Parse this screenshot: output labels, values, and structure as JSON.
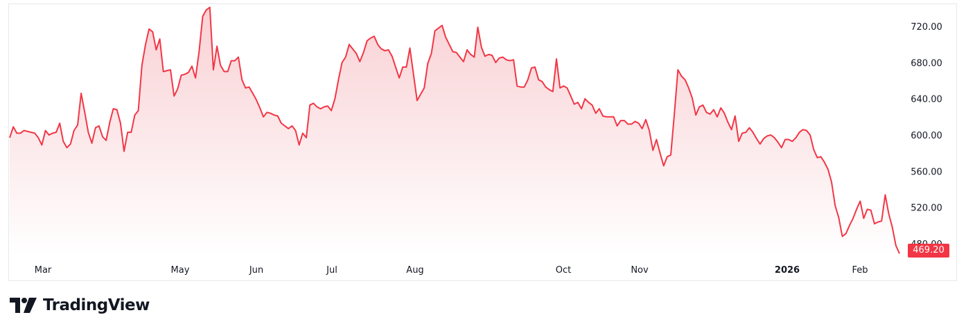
{
  "brand": {
    "name": "TradingView",
    "logo_icon": "tradingview-logo-icon"
  },
  "colors": {
    "line": "#f23645",
    "area_top": "#f8c9cd",
    "area_bottom": "#ffffff",
    "badge": "#f23645"
  },
  "last_price_label": "469.20",
  "chart_data": {
    "type": "area",
    "title": "",
    "xlabel": "",
    "ylabel": "",
    "ylim": [
      466,
      744
    ],
    "grid": false,
    "y_ticks": [
      "720.00",
      "680.00",
      "640.00",
      "600.00",
      "560.00",
      "520.00",
      "480.00"
    ],
    "x_ticks": [
      {
        "label": "Mar",
        "bold": false
      },
      {
        "label": "May",
        "bold": false
      },
      {
        "label": "Jun",
        "bold": false
      },
      {
        "label": "Jul",
        "bold": false
      },
      {
        "label": "Aug",
        "bold": false
      },
      {
        "label": "Oct",
        "bold": false
      },
      {
        "label": "Nov",
        "bold": false
      },
      {
        "label": "2026",
        "bold": true
      },
      {
        "label": "Feb",
        "bold": false
      }
    ],
    "series": [
      {
        "values": [
          597,
          609,
          602,
          602,
          605,
          604,
          603,
          602,
          597,
          589,
          605,
          600,
          602,
          603,
          613,
          593,
          586,
          590,
          605,
          611,
          646,
          625,
          603,
          591,
          608,
          610,
          598,
          594,
          614,
          629,
          628,
          613,
          582,
          603,
          603,
          622,
          627,
          677,
          700,
          717,
          714,
          694,
          706,
          670,
          671,
          672,
          643,
          651,
          666,
          667,
          669,
          676,
          663,
          692,
          731,
          738,
          741,
          672,
          698,
          677,
          670,
          670,
          682,
          682,
          686,
          661,
          652,
          653,
          646,
          639,
          630,
          620,
          625,
          624,
          622,
          621,
          613,
          610,
          607,
          610,
          605,
          589,
          602,
          597,
          633,
          635,
          631,
          629,
          631,
          632,
          627,
          640,
          661,
          680,
          686,
          700,
          695,
          690,
          681,
          691,
          704,
          707,
          709,
          700,
          695,
          693,
          694,
          687,
          675,
          663,
          675,
          675,
          696,
          667,
          638,
          645,
          652,
          679,
          690,
          715,
          718,
          721,
          708,
          700,
          692,
          691,
          686,
          681,
          694,
          689,
          686,
          719,
          697,
          687,
          689,
          688,
          680,
          685,
          686,
          683,
          682,
          683,
          654,
          653,
          653,
          661,
          674,
          675,
          661,
          659,
          653,
          650,
          648,
          684,
          652,
          654,
          652,
          643,
          634,
          636,
          629,
          640,
          636,
          633,
          624,
          629,
          621,
          620,
          620,
          620,
          610,
          616,
          616,
          612,
          612,
          615,
          613,
          607,
          617,
          605,
          583,
          595,
          580,
          566,
          576,
          578,
          623,
          672,
          665,
          661,
          652,
          641,
          622,
          631,
          633,
          625,
          623,
          628,
          620,
          630,
          624,
          614,
          606,
          621,
          593,
          602,
          603,
          608,
          603,
          596,
          590,
          596,
          599,
          600,
          597,
          592,
          586,
          595,
          595,
          593,
          597,
          603,
          606,
          605,
          600,
          584,
          575,
          576,
          570,
          562,
          548,
          522,
          509,
          488,
          491,
          500,
          508,
          518,
          527,
          508,
          518,
          517,
          502,
          504,
          505,
          534,
          513,
          498,
          478,
          469
        ]
      }
    ]
  }
}
